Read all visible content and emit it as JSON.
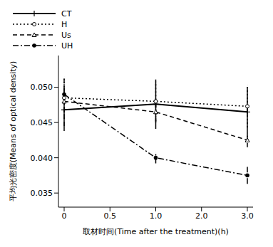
{
  "chart_data": {
    "type": "line",
    "x_label": "取材时间(Time after the treatment)(h)",
    "y_label": "平均光密度(Means of optical density)",
    "categories": [
      "0",
      "0.5",
      "1.0",
      "2.0",
      "3.0"
    ],
    "ylim": [
      0.033,
      0.0545
    ],
    "yticks": [
      {
        "value": 0.035,
        "label": "0.035"
      },
      {
        "value": 0.04,
        "label": "0.040"
      },
      {
        "value": 0.045,
        "label": "0.045"
      },
      {
        "value": 0.05,
        "label": "0.050"
      }
    ],
    "grid": false,
    "legend": "top",
    "series": [
      {
        "name": "CT",
        "color": "#000000",
        "line_style": "solid",
        "marker": "plus",
        "values": [
          0.0468,
          null,
          0.0476,
          null,
          0.0465
        ],
        "errors": [
          0.003,
          null,
          0.0035,
          null,
          0.0035
        ]
      },
      {
        "name": "H",
        "color": "#000000",
        "line_style": "dotted",
        "marker": "circle_open",
        "values": [
          0.0485,
          null,
          0.048,
          null,
          0.0473
        ],
        "errors": [
          0.003,
          null,
          0.0028,
          null,
          0.003
        ]
      },
      {
        "name": "Us",
        "color": "#000000",
        "line_style": "dashed",
        "marker": "triangle_open",
        "values": [
          0.048,
          null,
          0.0465,
          null,
          0.0425
        ],
        "errors": [
          0.0035,
          null,
          0.0015,
          null,
          0.001
        ]
      },
      {
        "name": "UH",
        "color": "#000000",
        "line_style": "dashdot",
        "marker": "circle",
        "values": [
          0.049,
          null,
          0.04,
          null,
          0.0375
        ],
        "errors": [
          0.0015,
          null,
          0.0008,
          null,
          0.0012
        ]
      }
    ]
  }
}
